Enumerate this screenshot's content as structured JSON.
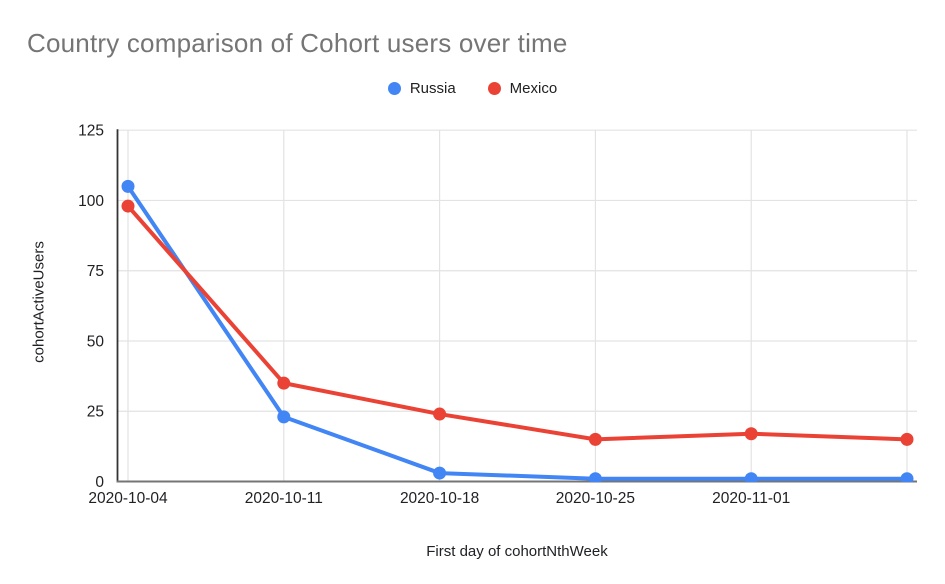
{
  "chart_data": {
    "type": "line",
    "title": "Country comparison of Cohort users over time",
    "xlabel": "First day of cohortNthWeek",
    "ylabel": "cohortActiveUsers",
    "categories": [
      "2020-10-04",
      "2020-10-11",
      "2020-10-18",
      "2020-10-25",
      "2020-11-01",
      ""
    ],
    "x_tick_labels": [
      "2020-10-04",
      "2020-10-11",
      "2020-10-18",
      "2020-10-25",
      "2020-11-01"
    ],
    "y_ticks": [
      0,
      25,
      50,
      75,
      100,
      125
    ],
    "ylim": [
      0,
      125
    ],
    "grid": true,
    "legend_position": "top",
    "series": [
      {
        "name": "Russia",
        "color": "#4285f4",
        "values": [
          105,
          23,
          3,
          1,
          1,
          1
        ]
      },
      {
        "name": "Mexico",
        "color": "#ea4335",
        "values": [
          98,
          35,
          24,
          15,
          17,
          15
        ]
      }
    ],
    "colors": {
      "title_text": "#757575",
      "axis_text": "#202124",
      "gridline": "#e3e3e3",
      "baseline": "#757575",
      "axis_line": "#333333",
      "background": "#ffffff"
    }
  }
}
